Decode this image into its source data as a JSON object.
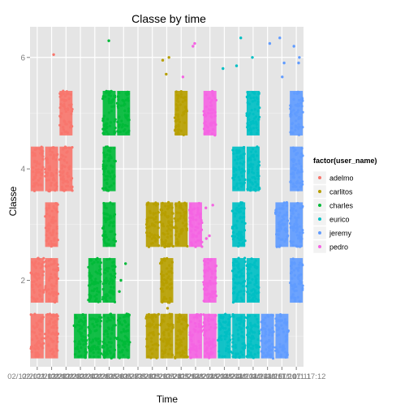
{
  "chart_data": {
    "type": "scatter",
    "title": "Classe by time",
    "xlabel": "Time",
    "ylabel": "Classe",
    "ylim": [
      0.45,
      6.55
    ],
    "y_ticks": [
      2,
      4,
      6
    ],
    "x_tick_labels": [
      "02/12/2011 13:32",
      "02/12/2011 13:33",
      "02/12/2011 13:34",
      "02/12/2011 13:35",
      "02/12/2011 13:36",
      "02/12/2011 13:37",
      "02/12/2011 13:38",
      "05/12/2011 11:23",
      "05/12/2011 11:24",
      "05/12/2011 11:25",
      "05/12/2011 14:22",
      "05/12/2011 14:23",
      "05/12/2011 14:24",
      "28/11/2011 14:13",
      "28/11/2011 14:14",
      "28/11/2011 14:15",
      "30/11/2011 17:10",
      "30/11/2011 17:11",
      "30/11/2011 17:12"
    ],
    "x_tick_labels_visible_tail": "30/11/2011 17:12",
    "grid": true,
    "legend_position": "right",
    "legend_title": "factor(user_name)",
    "series": [
      {
        "name": "adelmo",
        "color": "#F8766D",
        "bands": [
          {
            "x": 1,
            "classes": [
              1,
              2,
              4
            ]
          },
          {
            "x": 2,
            "classes": [
              1,
              2,
              3,
              4
            ]
          },
          {
            "x": 3,
            "classes": [
              4,
              5
            ]
          }
        ]
      },
      {
        "name": "carlitos",
        "color": "#B79F00",
        "bands": [
          {
            "x": 9,
            "classes": [
              1,
              3
            ]
          },
          {
            "x": 10,
            "classes": [
              1,
              2,
              3
            ]
          },
          {
            "x": 11,
            "classes": [
              1,
              3,
              5
            ]
          }
        ]
      },
      {
        "name": "charles",
        "color": "#00BA38",
        "bands": [
          {
            "x": 4,
            "classes": [
              1
            ]
          },
          {
            "x": 5,
            "classes": [
              1,
              2
            ]
          },
          {
            "x": 6,
            "classes": [
              1,
              2,
              3,
              4,
              5
            ]
          },
          {
            "x": 7,
            "classes": [
              1,
              5
            ]
          }
        ]
      },
      {
        "name": "eurico",
        "color": "#00BFC4",
        "bands": [
          {
            "x": 14,
            "classes": [
              1
            ]
          },
          {
            "x": 15,
            "classes": [
              1,
              2,
              3,
              4
            ]
          },
          {
            "x": 16,
            "classes": [
              1,
              2,
              4,
              5
            ]
          }
        ]
      },
      {
        "name": "jeremy",
        "color": "#619CFF",
        "bands": [
          {
            "x": 17,
            "classes": [
              1
            ]
          },
          {
            "x": 18,
            "classes": [
              1,
              3
            ]
          },
          {
            "x": 19,
            "classes": [
              2,
              3,
              4,
              5
            ]
          }
        ]
      },
      {
        "name": "pedro",
        "color": "#F564E3",
        "bands": [
          {
            "x": 12,
            "classes": [
              1,
              3
            ]
          },
          {
            "x": 13,
            "classes": [
              1,
              2,
              5
            ]
          }
        ]
      }
    ],
    "outlier_points": [
      {
        "series": "adelmo",
        "x": 2,
        "y": 6.05
      },
      {
        "series": "charles",
        "x": 6,
        "y": 6.3
      },
      {
        "series": "carlitos",
        "x": 10,
        "y": 5.95
      },
      {
        "series": "carlitos",
        "x": 10,
        "y": 6.0
      },
      {
        "series": "carlitos",
        "x": 10,
        "y": 5.7
      },
      {
        "series": "pedro",
        "x": 11,
        "y": 5.65
      },
      {
        "series": "pedro",
        "x": 12,
        "y": 6.25
      },
      {
        "series": "pedro",
        "x": 12,
        "y": 6.2
      },
      {
        "series": "eurico",
        "x": 14,
        "y": 5.8
      },
      {
        "series": "eurico",
        "x": 15,
        "y": 6.35
      },
      {
        "series": "eurico",
        "x": 15,
        "y": 5.85
      },
      {
        "series": "eurico",
        "x": 16,
        "y": 6.0
      },
      {
        "series": "jeremy",
        "x": 17,
        "y": 6.25
      },
      {
        "series": "jeremy",
        "x": 18,
        "y": 6.35
      },
      {
        "series": "jeremy",
        "x": 18,
        "y": 5.9
      },
      {
        "series": "jeremy",
        "x": 18,
        "y": 5.65
      },
      {
        "series": "jeremy",
        "x": 19,
        "y": 6.2
      },
      {
        "series": "jeremy",
        "x": 19,
        "y": 6.0
      },
      {
        "series": "jeremy",
        "x": 19,
        "y": 5.9
      },
      {
        "series": "pedro",
        "x": 13,
        "y": 3.3
      },
      {
        "series": "pedro",
        "x": 13,
        "y": 3.35
      },
      {
        "series": "pedro",
        "x": 13,
        "y": 2.8
      },
      {
        "series": "pedro",
        "x": 13,
        "y": 2.75
      },
      {
        "series": "jeremy",
        "x": 19,
        "y": 2.8
      },
      {
        "series": "jeremy",
        "x": 19,
        "y": 2.7
      },
      {
        "series": "charles",
        "x": 7,
        "y": 2.3
      },
      {
        "series": "charles",
        "x": 7,
        "y": 2.0
      },
      {
        "series": "charles",
        "x": 7,
        "y": 1.8
      },
      {
        "series": "carlitos",
        "x": 10,
        "y": 1.5
      },
      {
        "series": "eurico",
        "x": 16,
        "y": 1.3
      },
      {
        "series": "eurico",
        "x": 16,
        "y": 1.0
      },
      {
        "series": "eurico",
        "x": 16,
        "y": 0.7
      }
    ]
  }
}
